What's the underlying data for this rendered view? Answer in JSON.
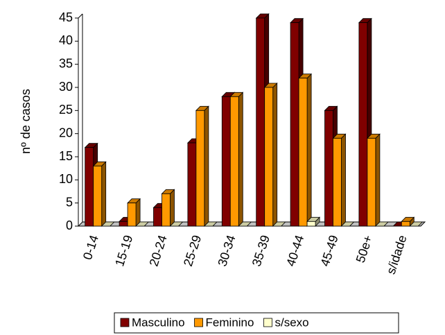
{
  "chart_data": {
    "type": "bar3d",
    "ylabel": "nº de casos",
    "categories": [
      "0-14",
      "15-19",
      "20-24",
      "25-29",
      "30-34",
      "35-39",
      "40-44",
      "45-49",
      "50e+",
      "s/idade"
    ],
    "series": [
      {
        "name": "Masculino",
        "color": "#800000",
        "values": [
          17,
          1,
          4,
          18,
          28,
          45,
          44,
          25,
          44,
          0
        ]
      },
      {
        "name": "Feminino",
        "color": "#ff9900",
        "values": [
          13,
          5,
          7,
          25,
          28,
          30,
          32,
          19,
          19,
          1
        ]
      },
      {
        "name": "s/sexo",
        "color": "#ffffcc",
        "values": [
          0,
          0,
          0,
          0,
          0,
          0,
          1,
          0,
          0,
          0
        ]
      }
    ],
    "ylim": [
      0,
      45
    ],
    "yticks": [
      0,
      5,
      10,
      15,
      20,
      25,
      30,
      35,
      40,
      45
    ]
  }
}
